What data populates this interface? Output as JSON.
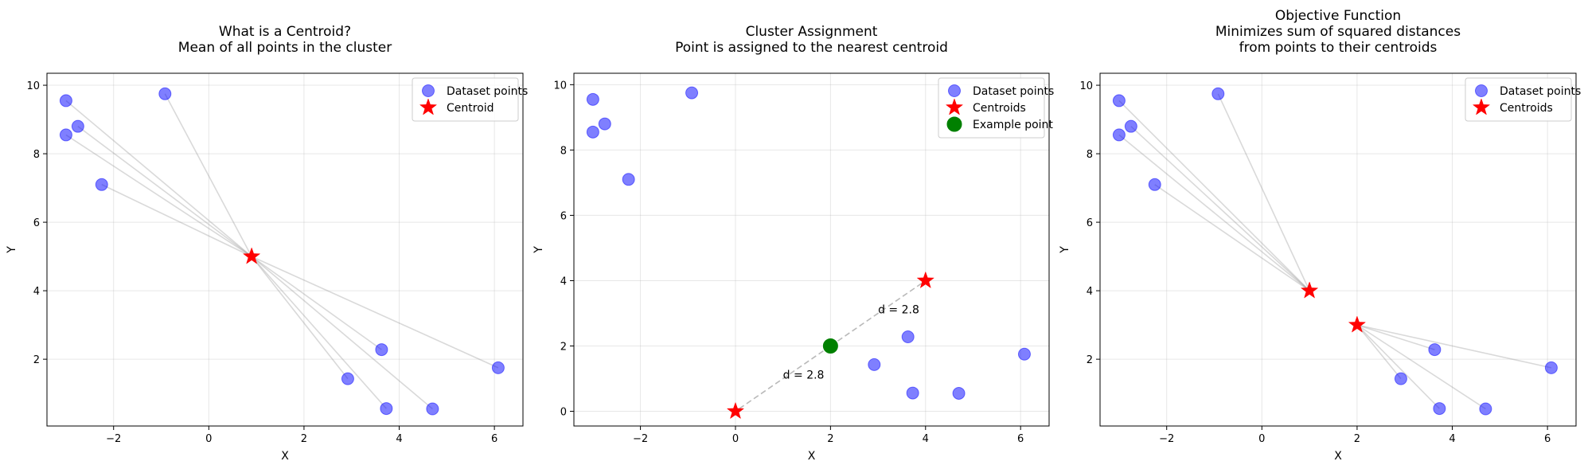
{
  "chart_data": [
    {
      "type": "scatter",
      "title": [
        "What is a Centroid?",
        "Mean of all points in the cluster"
      ],
      "xlabel": "X",
      "ylabel": "Y",
      "xlim": [
        -3.4,
        6.6
      ],
      "ylim": [
        0.05,
        10.35
      ],
      "xticks": [
        -2,
        0,
        2,
        4,
        6
      ],
      "yticks": [
        2,
        4,
        6,
        8,
        10
      ],
      "grid": true,
      "legend_position": "top-right",
      "series": [
        {
          "name": "Dataset points",
          "marker": "circle",
          "color": "#0000ff",
          "points": [
            [
              -3.0,
              9.55
            ],
            [
              -2.75,
              8.8
            ],
            [
              -3.0,
              8.55
            ],
            [
              -2.25,
              7.1
            ],
            [
              -0.92,
              9.75
            ],
            [
              3.63,
              2.28
            ],
            [
              2.92,
              1.43
            ],
            [
              3.73,
              0.56
            ],
            [
              4.7,
              0.55
            ],
            [
              6.08,
              1.75
            ]
          ]
        },
        {
          "name": "Centroid",
          "marker": "star",
          "color": "#ff0000",
          "points": [
            [
              0.9,
              5.0
            ]
          ]
        }
      ],
      "lines": [
        {
          "from": [
            -3.0,
            9.55
          ],
          "to": [
            0.9,
            5.0
          ]
        },
        {
          "from": [
            -2.75,
            8.8
          ],
          "to": [
            0.9,
            5.0
          ]
        },
        {
          "from": [
            -3.0,
            8.55
          ],
          "to": [
            0.9,
            5.0
          ]
        },
        {
          "from": [
            -2.25,
            7.1
          ],
          "to": [
            0.9,
            5.0
          ]
        },
        {
          "from": [
            -0.92,
            9.75
          ],
          "to": [
            0.9,
            5.0
          ]
        },
        {
          "from": [
            3.63,
            2.28
          ],
          "to": [
            0.9,
            5.0
          ]
        },
        {
          "from": [
            2.92,
            1.43
          ],
          "to": [
            0.9,
            5.0
          ]
        },
        {
          "from": [
            3.73,
            0.56
          ],
          "to": [
            0.9,
            5.0
          ]
        },
        {
          "from": [
            4.7,
            0.55
          ],
          "to": [
            0.9,
            5.0
          ]
        },
        {
          "from": [
            6.08,
            1.75
          ],
          "to": [
            0.9,
            5.0
          ]
        }
      ],
      "annotations": []
    },
    {
      "type": "scatter",
      "title": [
        "Cluster Assignment",
        "Point is assigned to the nearest centroid"
      ],
      "xlabel": "X",
      "ylabel": "Y",
      "xlim": [
        -3.4,
        6.6
      ],
      "ylim": [
        -0.45,
        10.35
      ],
      "xticks": [
        -2,
        0,
        2,
        4,
        6
      ],
      "yticks": [
        0,
        2,
        4,
        6,
        8,
        10
      ],
      "grid": true,
      "legend_position": "top-right",
      "series": [
        {
          "name": "Dataset points",
          "marker": "circle",
          "color": "#0000ff",
          "points": [
            [
              -3.0,
              9.55
            ],
            [
              -2.75,
              8.8
            ],
            [
              -3.0,
              8.55
            ],
            [
              -2.25,
              7.1
            ],
            [
              -0.92,
              9.75
            ],
            [
              3.63,
              2.28
            ],
            [
              2.92,
              1.43
            ],
            [
              3.73,
              0.56
            ],
            [
              4.7,
              0.55
            ],
            [
              6.08,
              1.75
            ]
          ]
        },
        {
          "name": "Centroids",
          "marker": "star",
          "color": "#ff0000",
          "points": [
            [
              0,
              0
            ],
            [
              4,
              4
            ]
          ]
        },
        {
          "name": "Example point",
          "marker": "circle",
          "color": "#008000",
          "points": [
            [
              2,
              2
            ]
          ]
        }
      ],
      "lines": [
        {
          "from": [
            2,
            2
          ],
          "to": [
            0,
            0
          ],
          "dashed": true
        },
        {
          "from": [
            2,
            2
          ],
          "to": [
            4,
            4
          ],
          "dashed": true
        }
      ],
      "annotations": [
        {
          "text": "d = 2.8",
          "x": 1.0,
          "y": 1.0
        },
        {
          "text": "d = 2.8",
          "x": 3.0,
          "y": 3.0
        }
      ]
    },
    {
      "type": "scatter",
      "title": [
        "Objective Function",
        "Minimizes sum of squared distances",
        "from points to their centroids"
      ],
      "xlabel": "X",
      "ylabel": "Y",
      "xlim": [
        -3.4,
        6.6
      ],
      "ylim": [
        0.05,
        10.35
      ],
      "xticks": [
        -2,
        0,
        2,
        4,
        6
      ],
      "yticks": [
        2,
        4,
        6,
        8,
        10
      ],
      "grid": true,
      "legend_position": "top-right",
      "series": [
        {
          "name": "Dataset points",
          "marker": "circle",
          "color": "#0000ff",
          "points": [
            [
              -3.0,
              9.55
            ],
            [
              -2.75,
              8.8
            ],
            [
              -3.0,
              8.55
            ],
            [
              -2.25,
              7.1
            ],
            [
              -0.92,
              9.75
            ],
            [
              3.63,
              2.28
            ],
            [
              2.92,
              1.43
            ],
            [
              3.73,
              0.56
            ],
            [
              4.7,
              0.55
            ],
            [
              6.08,
              1.75
            ]
          ]
        },
        {
          "name": "Centroids",
          "marker": "star",
          "color": "#ff0000",
          "points": [
            [
              1,
              4
            ],
            [
              2,
              3
            ]
          ]
        }
      ],
      "lines": [
        {
          "from": [
            -3.0,
            9.55
          ],
          "to": [
            1,
            4
          ]
        },
        {
          "from": [
            -2.75,
            8.8
          ],
          "to": [
            1,
            4
          ]
        },
        {
          "from": [
            -3.0,
            8.55
          ],
          "to": [
            1,
            4
          ]
        },
        {
          "from": [
            -2.25,
            7.1
          ],
          "to": [
            1,
            4
          ]
        },
        {
          "from": [
            -0.92,
            9.75
          ],
          "to": [
            1,
            4
          ]
        },
        {
          "from": [
            3.63,
            2.28
          ],
          "to": [
            2,
            3
          ]
        },
        {
          "from": [
            2.92,
            1.43
          ],
          "to": [
            2,
            3
          ]
        },
        {
          "from": [
            3.73,
            0.56
          ],
          "to": [
            2,
            3
          ]
        },
        {
          "from": [
            4.7,
            0.55
          ],
          "to": [
            2,
            3
          ]
        },
        {
          "from": [
            6.08,
            1.75
          ],
          "to": [
            2,
            3
          ]
        }
      ],
      "annotations": []
    }
  ]
}
